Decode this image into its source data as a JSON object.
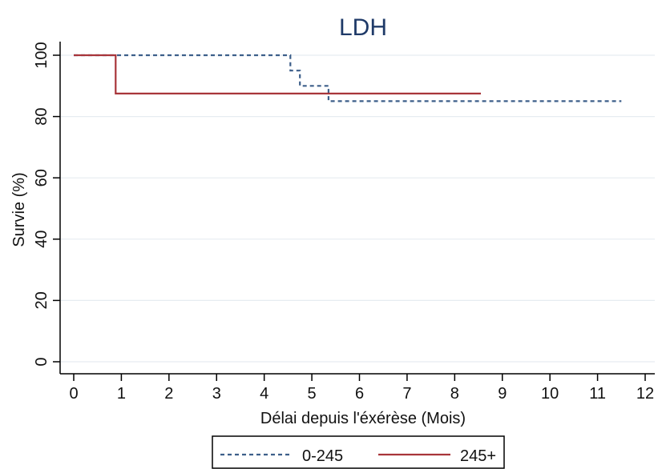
{
  "chart_data": {
    "type": "line",
    "subtype": "kaplan-meier step curves",
    "title": "LDH",
    "xlabel": "Délai depuis l'éxérèse (Mois)",
    "ylabel": "Survie (%)",
    "xlim": [
      0,
      12
    ],
    "ylim": [
      0,
      100
    ],
    "x_ticks": [
      "0",
      "1",
      "2",
      "3",
      "4",
      "5",
      "6",
      "7",
      "8",
      "9",
      "10",
      "11",
      "12"
    ],
    "y_ticks": [
      "0",
      "20",
      "40",
      "60",
      "80",
      "100"
    ],
    "grid": "horizontal",
    "legend_position": "bottom",
    "series": [
      {
        "name": "0-245",
        "color": "#3d5f8a",
        "style": "dashed",
        "points": [
          [
            0,
            100
          ],
          [
            4.55,
            100
          ],
          [
            4.55,
            95
          ],
          [
            4.75,
            95
          ],
          [
            4.75,
            90
          ],
          [
            5.35,
            90
          ],
          [
            5.35,
            85
          ],
          [
            11.5,
            85
          ]
        ]
      },
      {
        "name": "245+",
        "color": "#a8353a",
        "style": "solid",
        "points": [
          [
            0,
            100
          ],
          [
            0.88,
            100
          ],
          [
            0.88,
            87.5
          ],
          [
            8.55,
            87.5
          ]
        ]
      }
    ]
  }
}
